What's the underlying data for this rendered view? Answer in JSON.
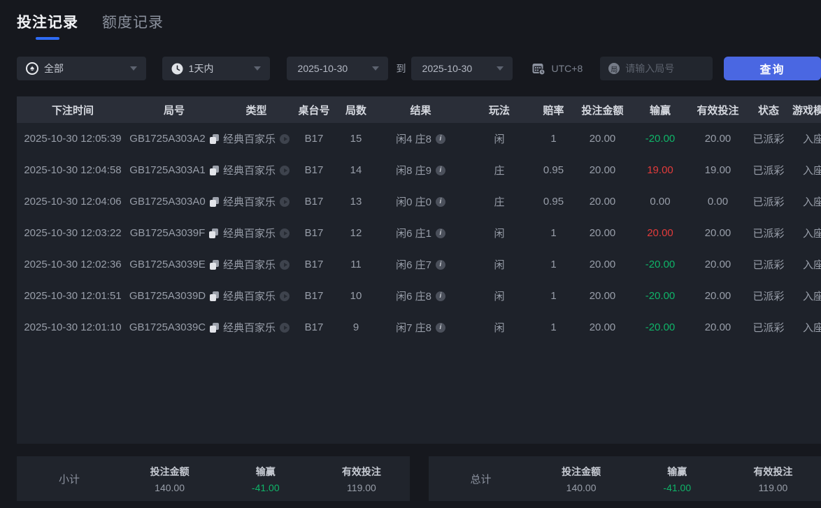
{
  "tabs": [
    {
      "label": "投注记录",
      "active": true
    },
    {
      "label": "额度记录",
      "active": false
    }
  ],
  "filters": {
    "game_type_value": "全部",
    "time_range_value": "1天内",
    "date_from": "2025-10-30",
    "to_label": "到",
    "date_to": "2025-10-30",
    "timezone_label": "UTC+8",
    "round_placeholder": "请输入局号",
    "query_button_label": "查询"
  },
  "icons": {
    "spade_glyph": "♠",
    "round_badge_glyph": "局",
    "info_glyph": "i"
  },
  "table": {
    "headers": [
      "下注时间",
      "局号",
      "类型",
      "桌台号",
      "局数",
      "结果",
      "玩法",
      "赔率",
      "投注金额",
      "输赢",
      "有效投注",
      "状态",
      "游戏模式"
    ],
    "rows": [
      {
        "time": "2025-10-30 12:05:39",
        "round_id": "GB1725A303A2",
        "type": "经典百家乐",
        "table_no": "B17",
        "round": "15",
        "result": "闲4 庄8",
        "play": "闲",
        "odds": "1",
        "bet": "20.00",
        "win_lose": "-20.00",
        "win_class": "green",
        "valid_bet": "20.00",
        "status": "已派彩",
        "mode": "入座"
      },
      {
        "time": "2025-10-30 12:04:58",
        "round_id": "GB1725A303A1",
        "type": "经典百家乐",
        "table_no": "B17",
        "round": "14",
        "result": "闲8 庄9",
        "play": "庄",
        "odds": "0.95",
        "bet": "20.00",
        "win_lose": "19.00",
        "win_class": "red",
        "valid_bet": "19.00",
        "status": "已派彩",
        "mode": "入座"
      },
      {
        "time": "2025-10-30 12:04:06",
        "round_id": "GB1725A303A0",
        "type": "经典百家乐",
        "table_no": "B17",
        "round": "13",
        "result": "闲0 庄0",
        "play": "庄",
        "odds": "0.95",
        "bet": "20.00",
        "win_lose": "0.00",
        "win_class": "",
        "valid_bet": "0.00",
        "status": "已派彩",
        "mode": "入座"
      },
      {
        "time": "2025-10-30 12:03:22",
        "round_id": "GB1725A3039F",
        "type": "经典百家乐",
        "table_no": "B17",
        "round": "12",
        "result": "闲6 庄1",
        "play": "闲",
        "odds": "1",
        "bet": "20.00",
        "win_lose": "20.00",
        "win_class": "red",
        "valid_bet": "20.00",
        "status": "已派彩",
        "mode": "入座"
      },
      {
        "time": "2025-10-30 12:02:36",
        "round_id": "GB1725A3039E",
        "type": "经典百家乐",
        "table_no": "B17",
        "round": "11",
        "result": "闲6 庄7",
        "play": "闲",
        "odds": "1",
        "bet": "20.00",
        "win_lose": "-20.00",
        "win_class": "green",
        "valid_bet": "20.00",
        "status": "已派彩",
        "mode": "入座"
      },
      {
        "time": "2025-10-30 12:01:51",
        "round_id": "GB1725A3039D",
        "type": "经典百家乐",
        "table_no": "B17",
        "round": "10",
        "result": "闲6 庄8",
        "play": "闲",
        "odds": "1",
        "bet": "20.00",
        "win_lose": "-20.00",
        "win_class": "green",
        "valid_bet": "20.00",
        "status": "已派彩",
        "mode": "入座"
      },
      {
        "time": "2025-10-30 12:01:10",
        "round_id": "GB1725A3039C",
        "type": "经典百家乐",
        "table_no": "B17",
        "round": "9",
        "result": "闲7 庄8",
        "play": "闲",
        "odds": "1",
        "bet": "20.00",
        "win_lose": "-20.00",
        "win_class": "green",
        "valid_bet": "20.00",
        "status": "已派彩",
        "mode": "入座"
      }
    ]
  },
  "summary": {
    "columns": [
      "投注金额",
      "输赢",
      "有效投注"
    ],
    "subtotal": {
      "label": "小计",
      "bet": "140.00",
      "win": "-41.00",
      "valid": "119.00"
    },
    "total": {
      "label": "总计",
      "bet": "140.00",
      "win": "-41.00",
      "valid": "119.00"
    }
  },
  "colors": {
    "accent_blue": "#4a67e2",
    "tab_underline_blue": "#2e6bf5",
    "win_red": "#e23b3b",
    "lose_green": "#0fb468",
    "header_bg": "#2a2e38",
    "table_bg": "#1e222a",
    "page_bg": "#16181e"
  }
}
